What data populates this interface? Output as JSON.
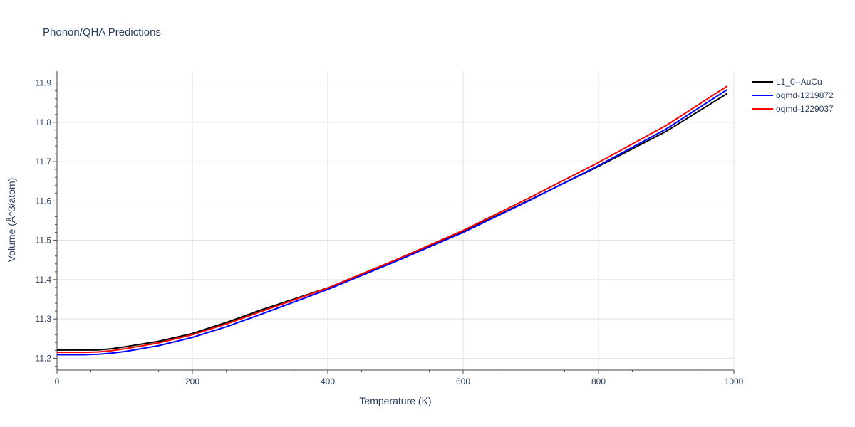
{
  "chart_data": {
    "type": "line",
    "title": "Phonon/QHA Predictions",
    "xlabel": "Temperature (K)",
    "ylabel": "Volume (Å^3/atom)",
    "xlim": [
      0,
      1000
    ],
    "ylim": [
      11.17,
      11.93
    ],
    "x_ticks": [
      0,
      200,
      400,
      600,
      800,
      1000
    ],
    "x_tick_labels": [
      "0",
      "200",
      "400",
      "600",
      "800",
      "1000"
    ],
    "y_ticks": [
      11.2,
      11.3,
      11.4,
      11.5,
      11.6,
      11.7,
      11.8,
      11.9
    ],
    "y_tick_labels": [
      "11.2",
      "11.3",
      "11.4",
      "11.5",
      "11.6",
      "11.7",
      "11.8",
      "11.9"
    ],
    "grid": true,
    "legend_position": "top-right",
    "series": [
      {
        "name": "L1_0--AuCu",
        "color": "#000000",
        "x": [
          0,
          20,
          40,
          60,
          80,
          100,
          150,
          200,
          250,
          300,
          400,
          500,
          600,
          700,
          800,
          900,
          990
        ],
        "y": [
          11.221,
          11.221,
          11.221,
          11.221,
          11.224,
          11.229,
          11.243,
          11.263,
          11.291,
          11.322,
          11.379,
          11.446,
          11.522,
          11.604,
          11.688,
          11.777,
          11.873
        ]
      },
      {
        "name": "oqmd-1219872",
        "color": "#0000ff",
        "x": [
          0,
          20,
          40,
          60,
          80,
          100,
          150,
          200,
          250,
          300,
          400,
          500,
          600,
          700,
          800,
          900,
          990
        ],
        "y": [
          11.209,
          11.209,
          11.209,
          11.21,
          11.213,
          11.217,
          11.232,
          11.253,
          11.28,
          11.311,
          11.375,
          11.446,
          11.52,
          11.603,
          11.69,
          11.783,
          11.883
        ]
      },
      {
        "name": "oqmd-1229037",
        "color": "#ff0000",
        "x": [
          0,
          20,
          40,
          60,
          80,
          100,
          150,
          200,
          250,
          300,
          400,
          500,
          600,
          700,
          800,
          900,
          990
        ],
        "y": [
          11.215,
          11.215,
          11.215,
          11.216,
          11.219,
          11.224,
          11.239,
          11.26,
          11.287,
          11.318,
          11.379,
          11.45,
          11.525,
          11.61,
          11.698,
          11.792,
          11.892
        ]
      }
    ]
  }
}
